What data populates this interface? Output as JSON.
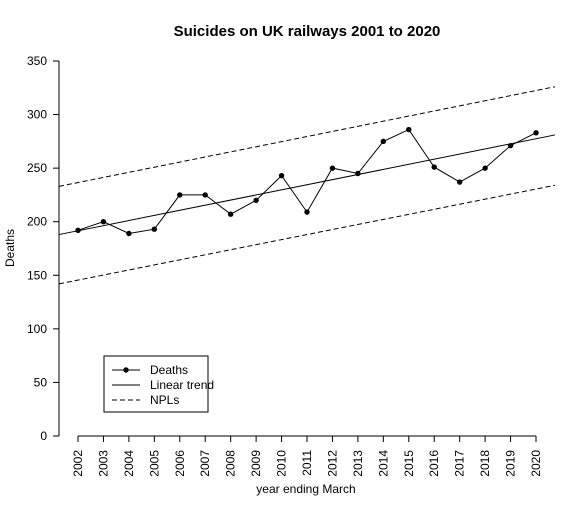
{
  "chart_data": {
    "type": "line",
    "title": "Suicides on UK railways 2001 to 2020",
    "xlabel": "year ending March",
    "ylabel": "Deaths",
    "categories": [
      "2002",
      "2003",
      "2004",
      "2005",
      "2006",
      "2007",
      "2008",
      "2009",
      "2010",
      "2011",
      "2012",
      "2013",
      "2014",
      "2015",
      "2016",
      "2017",
      "2018",
      "2019",
      "2020"
    ],
    "ylim": [
      0,
      350
    ],
    "yticks": [
      0,
      50,
      100,
      150,
      200,
      250,
      300,
      350
    ],
    "grid": false,
    "legend_position": "bottom-left",
    "series": [
      {
        "name": "Deaths",
        "style": "solid-with-points",
        "values": [
          192,
          200,
          189,
          193,
          225,
          225,
          207,
          220,
          243,
          209,
          250,
          245,
          275,
          286,
          251,
          237,
          250,
          271,
          283
        ]
      },
      {
        "name": "Linear trend",
        "style": "solid",
        "start_value": 188,
        "end_value": 281
      },
      {
        "name": "NPLs",
        "style": "dashed",
        "upper": {
          "start_value": 233,
          "end_value": 326
        },
        "lower": {
          "start_value": 142,
          "end_value": 234
        }
      }
    ]
  }
}
